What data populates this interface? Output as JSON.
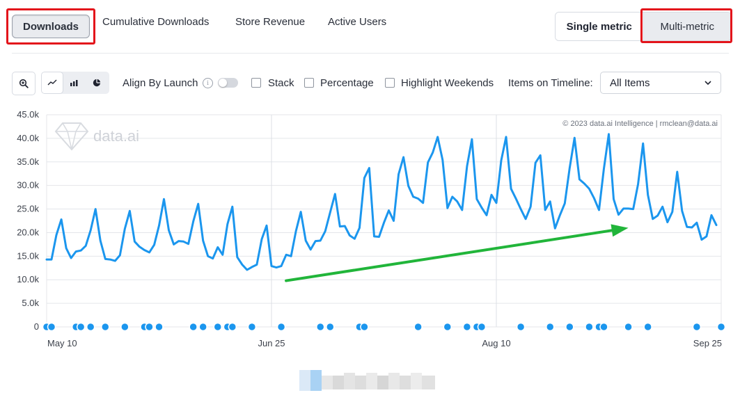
{
  "tabs": [
    {
      "label": "Downloads",
      "active": true
    },
    {
      "label": "Cumulative Downloads"
    },
    {
      "label": "Store Revenue"
    },
    {
      "label": "Active Users"
    }
  ],
  "metric_toggle": {
    "single": "Single metric",
    "multi": "Multi-metric"
  },
  "toolbar": {
    "align_by_launch": "Align By Launch",
    "stack": "Stack",
    "percentage": "Percentage",
    "highlight_weekends": "Highlight Weekends",
    "items_on_timeline": "Items on Timeline:",
    "items_select_value": "All Items"
  },
  "icons": {
    "zoom": "zoom-in-icon",
    "line_chart": "line-chart-icon",
    "bar_chart": "bar-chart-icon",
    "pie_chart": "pie-chart-icon",
    "info": "info-icon",
    "chevron": "chevron-down-icon"
  },
  "colors": {
    "series": "#1b96ee",
    "annotation_arrow": "#21b53a",
    "highlight_box": "#e3141b",
    "grid": "#e4e6ea"
  },
  "chart_data": {
    "type": "line",
    "watermark": "data.ai",
    "copyright": "© 2023 data.ai Intelligence | rmclean@data.ai",
    "y_ticks": [
      "0",
      "5.0k",
      "10.0k",
      "15.0k",
      "20.0k",
      "25.0k",
      "30.0k",
      "35.0k",
      "40.0k",
      "45.0k"
    ],
    "ylim": [
      0,
      45000
    ],
    "x_ticks": [
      {
        "label": "May 10",
        "day": 0
      },
      {
        "label": "Jun 25",
        "day": 46
      },
      {
        "label": "Aug 10",
        "day": 92
      },
      {
        "label": "Sep 25",
        "day": 138
      }
    ],
    "grid_vertical_days": [
      46,
      92
    ],
    "series": [
      {
        "values": [
          14300,
          14300,
          19500,
          22800,
          16700,
          14600,
          16000,
          16200,
          17200,
          20500,
          25000,
          18300,
          14400,
          14300,
          14000,
          15200,
          20800,
          24600,
          18100,
          17000,
          16300,
          15800,
          17400,
          21500,
          27100,
          20500,
          17500,
          18200,
          18100,
          17600,
          22400,
          26100,
          18300,
          15000,
          14500,
          16900,
          15300,
          21800,
          25500,
          14800,
          13200,
          12100,
          12700,
          13200,
          18600,
          21500,
          12900,
          12600,
          12900,
          15300,
          15000,
          20300,
          24400,
          18300,
          16400,
          18200,
          18300,
          20300,
          24300,
          28200,
          21300,
          21400,
          19400,
          18700,
          21000,
          31600,
          33700,
          19200,
          19100,
          22100,
          24700,
          22500,
          32400,
          36000,
          29900,
          27600,
          27200,
          26300,
          34900,
          37000,
          40300,
          35400,
          25200,
          27600,
          26600,
          24800,
          34100,
          39800,
          27100,
          25300,
          23700,
          28000,
          26300,
          35300,
          40300,
          29300,
          27200,
          25000,
          22900,
          25500,
          34800,
          36400,
          24800,
          26600,
          20900,
          23700,
          26200,
          33700,
          40100,
          31300,
          30400,
          29300,
          27300,
          24800,
          33600,
          40900,
          27100,
          23800,
          25100,
          25100,
          25000,
          30300,
          38900,
          28000,
          22900,
          23600,
          25500,
          22200,
          24400,
          32900,
          24600,
          21200,
          21100,
          22100,
          18500,
          19200,
          23700,
          21600
        ]
      }
    ],
    "event_marker_days": [
      0,
      1,
      6,
      7,
      9,
      12,
      16,
      20,
      21,
      23,
      30,
      32,
      35,
      37,
      38,
      42,
      48,
      56,
      58,
      64,
      65,
      76,
      82,
      86,
      88,
      89,
      97,
      103,
      107,
      111,
      113,
      114,
      119,
      123,
      133,
      138
    ],
    "annotation": {
      "type": "arrow",
      "from": {
        "day": 49,
        "value": 9800
      },
      "to": {
        "day": 119,
        "value": 21000
      }
    },
    "highlighted_controls": [
      "Downloads",
      "Multi-metric"
    ]
  }
}
